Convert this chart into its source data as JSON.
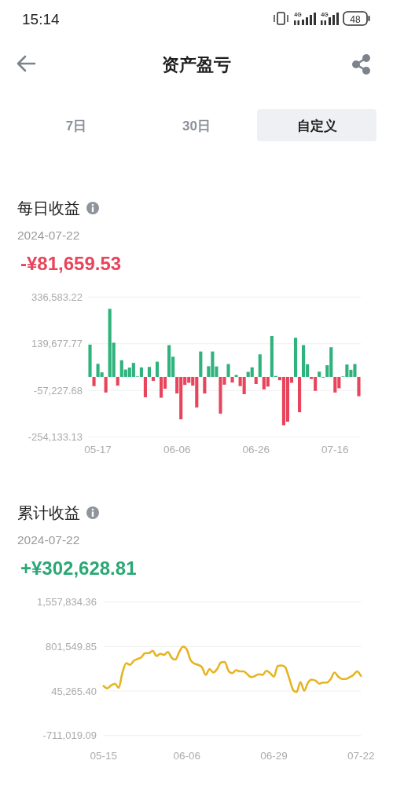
{
  "chart_data": [
    {
      "type": "other",
      "title": "资产盈亏",
      "annotations": [
        "15:14",
        "4G",
        "4G",
        "48",
        "7日",
        "30日",
        "自定义"
      ]
    },
    {
      "type": "bar",
      "title": "每日收益",
      "subtitle": "2024-07-22",
      "annotations": [
        "-¥81,659.53"
      ],
      "categories": [
        null,
        null,
        "05-17",
        null,
        null,
        null,
        null,
        null,
        null,
        null,
        null,
        null,
        null,
        null,
        null,
        null,
        null,
        null,
        null,
        null,
        null,
        null,
        "06-06",
        null,
        null,
        null,
        null,
        null,
        null,
        null,
        null,
        null,
        null,
        null,
        null,
        null,
        null,
        null,
        null,
        null,
        null,
        null,
        "06-26",
        null,
        null,
        null,
        null,
        null,
        null,
        null,
        null,
        null,
        null,
        null,
        null,
        null,
        null,
        null,
        null,
        null,
        null,
        null,
        "07-16",
        null,
        null,
        null,
        null,
        null,
        null
      ],
      "values": [
        136000,
        -39000,
        55000,
        19000,
        -66000,
        287000,
        144000,
        -37000,
        70000,
        31000,
        39000,
        59000,
        2000,
        40000,
        -86000,
        42000,
        -17000,
        64000,
        -88000,
        -50000,
        134000,
        85000,
        -70000,
        -179000,
        -34000,
        -25000,
        -37000,
        -129000,
        107000,
        -70000,
        45000,
        107000,
        44000,
        -155000,
        -33000,
        54000,
        -24000,
        8000,
        -39000,
        -73000,
        21000,
        40000,
        -30000,
        95000,
        -53000,
        -41000,
        172000,
        4000,
        -14000,
        -204000,
        -189000,
        -25000,
        165000,
        -149000,
        134000,
        53000,
        -9000,
        -59000,
        22000,
        -3000,
        49000,
        125000,
        -66000,
        -48000,
        2000,
        52000,
        30000,
        54000,
        -81659.53
      ],
      "colors": [
        "#2fb27c",
        "#e8455c",
        "#2fb27c",
        "#2fb27c",
        "#e8455c",
        "#2fb27c",
        "#2fb27c",
        "#e8455c",
        "#2fb27c",
        "#2fb27c",
        "#2fb27c",
        "#2fb27c",
        "#2fb27c",
        "#2fb27c",
        "#e8455c",
        "#2fb27c",
        "#e8455c",
        "#2fb27c",
        "#e8455c",
        "#e8455c",
        "#2fb27c",
        "#2fb27c",
        "#e8455c",
        "#e8455c",
        "#e8455c",
        "#e8455c",
        "#e8455c",
        "#e8455c",
        "#2fb27c",
        "#e8455c",
        "#2fb27c",
        "#2fb27c",
        "#2fb27c",
        "#e8455c",
        "#e8455c",
        "#2fb27c",
        "#e8455c",
        "#2fb27c",
        "#e8455c",
        "#e8455c",
        "#2fb27c",
        "#2fb27c",
        "#e8455c",
        "#2fb27c",
        "#e8455c",
        "#e8455c",
        "#2fb27c",
        "#2fb27c",
        "#e8455c",
        "#e8455c",
        "#e8455c",
        "#e8455c",
        "#2fb27c",
        "#e8455c",
        "#2fb27c",
        "#2fb27c",
        "#e8455c",
        "#e8455c",
        "#2fb27c",
        "#e8455c",
        "#2fb27c",
        "#2fb27c",
        "#e8455c",
        "#e8455c",
        "#2fb27c",
        "#2fb27c",
        "#2fb27c",
        "#2fb27c",
        "#e8455c"
      ],
      "ylim": [
        -254133.13,
        336583.22
      ],
      "yticks": [
        {
          "value": -254133.13,
          "label": "-254,133.13"
        },
        {
          "value": -57227.68,
          "label": "-57,227.68"
        },
        {
          "value": 139677.77,
          "label": "139,677.77"
        },
        {
          "value": 336583.22,
          "label": "336,583.22"
        }
      ],
      "grid": "y"
    },
    {
      "type": "line",
      "title": "累计收益",
      "subtitle": "2024-07-22",
      "annotations": [
        "+¥302,628.81"
      ],
      "categories": [
        "05-15",
        null,
        null,
        null,
        null,
        null,
        null,
        null,
        null,
        null,
        null,
        null,
        null,
        null,
        null,
        null,
        null,
        null,
        null,
        null,
        null,
        null,
        "06-06",
        null,
        null,
        null,
        null,
        null,
        null,
        null,
        null,
        null,
        null,
        null,
        null,
        null,
        null,
        null,
        null,
        null,
        null,
        null,
        null,
        null,
        null,
        "06-29",
        null,
        null,
        null,
        null,
        null,
        null,
        null,
        null,
        null,
        null,
        null,
        null,
        null,
        null,
        null,
        null,
        null,
        null,
        null,
        null,
        null,
        null,
        "07-22"
      ],
      "values": [
        130000,
        90000,
        140000,
        170000,
        100000,
        360000,
        520000,
        490000,
        560000,
        590000,
        620000,
        690000,
        690000,
        730000,
        640000,
        680000,
        660000,
        710000,
        610000,
        580000,
        710000,
        800000,
        750000,
        570000,
        510000,
        490000,
        450000,
        320000,
        420000,
        360000,
        420000,
        530000,
        540000,
        390000,
        350000,
        400000,
        380000,
        380000,
        330000,
        280000,
        300000,
        330000,
        320000,
        390000,
        350000,
        290000,
        470000,
        480000,
        450000,
        270000,
        70000,
        30000,
        200000,
        50000,
        190000,
        240000,
        220000,
        170000,
        190000,
        190000,
        250000,
        360000,
        290000,
        250000,
        250000,
        280000,
        320000,
        380000,
        302628.81
      ],
      "color": "#e6b422",
      "ylim": [
        -711019.09,
        1557834.36
      ],
      "yticks": [
        {
          "value": -711019.09,
          "label": "-711,019.09"
        },
        {
          "value": 45265.4,
          "label": "45,265.40"
        },
        {
          "value": 801549.85,
          "label": "801,549.85"
        },
        {
          "value": 1557834.36,
          "label": "1,557,834.36"
        }
      ],
      "grid": "y"
    }
  ]
}
